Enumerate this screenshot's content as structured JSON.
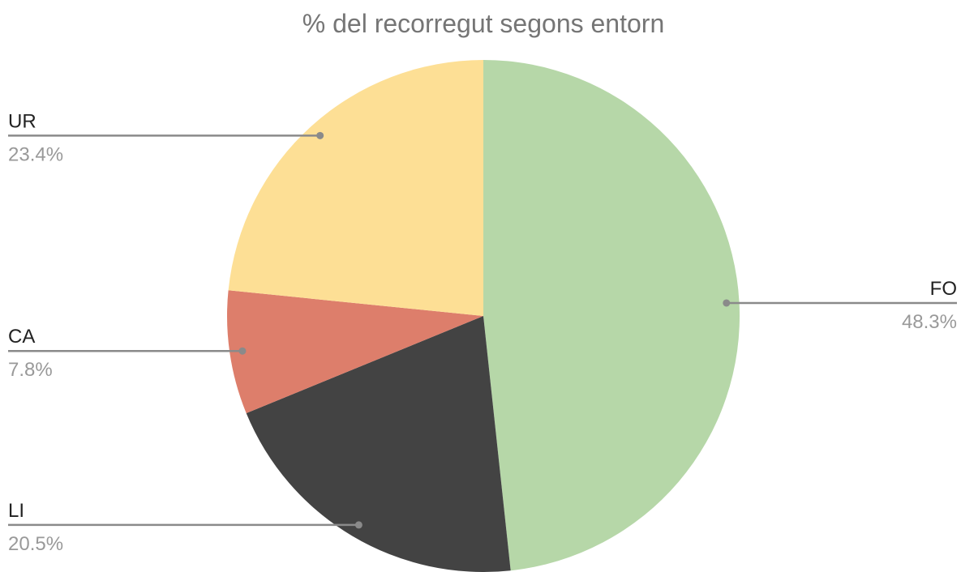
{
  "chart_data": {
    "type": "pie",
    "title": "% del recorregut segons entorn",
    "categories": [
      "FO",
      "LI",
      "CA",
      "UR"
    ],
    "values": [
      48.3,
      20.5,
      7.8,
      23.4
    ],
    "value_labels": [
      "48.3%",
      "20.5%",
      "7.8%",
      "23.4%"
    ],
    "colors": [
      "#b6d7a8",
      "#434343",
      "#dd7e6b",
      "#fddf95"
    ]
  }
}
